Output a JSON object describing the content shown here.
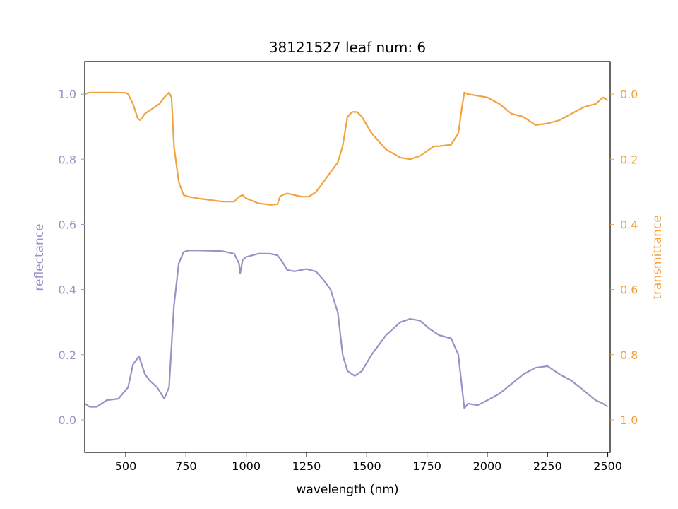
{
  "chart_data": {
    "type": "line",
    "title": "38121527 leaf num: 6",
    "xlabel": "wavelength (nm)",
    "ylabel_left": "reflectance",
    "ylabel_right": "transmittance",
    "xlim": [
      330,
      2510
    ],
    "ylim_left": [
      -0.1,
      1.1
    ],
    "ylim_right": [
      1.1,
      -0.1
    ],
    "right_axis_inverted": true,
    "grid": false,
    "x_ticks": [
      500,
      750,
      1000,
      1250,
      1500,
      1750,
      2000,
      2250,
      2500
    ],
    "y_ticks_left": [
      0.0,
      0.2,
      0.4,
      0.6,
      0.8,
      1.0
    ],
    "y_ticks_right": [
      0.0,
      0.2,
      0.4,
      0.6,
      0.8,
      1.0
    ],
    "colors": {
      "reflectance": "#9892c5",
      "transmittance": "#f0a33f",
      "axis": "#000000"
    },
    "series": [
      {
        "axis": "left",
        "x": [
          330,
          350,
          380,
          420,
          470,
          510,
          530,
          555,
          580,
          600,
          630,
          660,
          680,
          700,
          720,
          740,
          760,
          800,
          900,
          950,
          970,
          975,
          985,
          1000,
          1050,
          1100,
          1130,
          1150,
          1170,
          1200,
          1250,
          1290,
          1320,
          1350,
          1380,
          1400,
          1420,
          1450,
          1480,
          1520,
          1580,
          1640,
          1680,
          1720,
          1760,
          1800,
          1850,
          1880,
          1895,
          1905,
          1920,
          1960,
          2000,
          2050,
          2100,
          2150,
          2200,
          2250,
          2300,
          2350,
          2400,
          2450,
          2480,
          2500
        ],
        "y": [
          0.05,
          0.04,
          0.04,
          0.06,
          0.065,
          0.1,
          0.17,
          0.195,
          0.14,
          0.12,
          0.1,
          0.065,
          0.1,
          0.35,
          0.48,
          0.515,
          0.52,
          0.52,
          0.518,
          0.51,
          0.48,
          0.45,
          0.49,
          0.5,
          0.51,
          0.51,
          0.505,
          0.485,
          0.46,
          0.456,
          0.463,
          0.455,
          0.43,
          0.4,
          0.33,
          0.2,
          0.15,
          0.135,
          0.15,
          0.2,
          0.26,
          0.3,
          0.31,
          0.305,
          0.28,
          0.26,
          0.25,
          0.2,
          0.1,
          0.035,
          0.05,
          0.045,
          0.06,
          0.08,
          0.11,
          0.14,
          0.16,
          0.165,
          0.14,
          0.12,
          0.09,
          0.06,
          0.05,
          0.04
        ]
      },
      {
        "axis": "right",
        "x": [
          330,
          350,
          400,
          450,
          500,
          510,
          530,
          550,
          560,
          580,
          600,
          640,
          660,
          680,
          690,
          700,
          720,
          740,
          760,
          800,
          850,
          900,
          950,
          970,
          985,
          1000,
          1050,
          1100,
          1130,
          1140,
          1150,
          1170,
          1200,
          1230,
          1260,
          1290,
          1320,
          1350,
          1380,
          1400,
          1420,
          1440,
          1460,
          1480,
          1520,
          1580,
          1640,
          1680,
          1720,
          1760,
          1780,
          1800,
          1850,
          1880,
          1895,
          1905,
          1920,
          1960,
          2000,
          2050,
          2100,
          2150,
          2200,
          2250,
          2300,
          2350,
          2400,
          2450,
          2480,
          2500
        ],
        "y": [
          0.0,
          -0.005,
          -0.005,
          -0.005,
          -0.004,
          0.0,
          0.03,
          0.075,
          0.08,
          0.06,
          0.05,
          0.03,
          0.01,
          -0.005,
          0.01,
          0.16,
          0.27,
          0.31,
          0.315,
          0.32,
          0.325,
          0.33,
          0.33,
          0.315,
          0.31,
          0.32,
          0.335,
          0.34,
          0.338,
          0.315,
          0.31,
          0.305,
          0.31,
          0.315,
          0.315,
          0.3,
          0.27,
          0.24,
          0.21,
          0.16,
          0.07,
          0.055,
          0.055,
          0.07,
          0.12,
          0.17,
          0.195,
          0.2,
          0.19,
          0.17,
          0.16,
          0.16,
          0.155,
          0.12,
          0.04,
          -0.005,
          0.0,
          0.005,
          0.01,
          0.03,
          0.06,
          0.07,
          0.095,
          0.09,
          0.08,
          0.06,
          0.04,
          0.03,
          0.01,
          0.02
        ]
      }
    ]
  }
}
